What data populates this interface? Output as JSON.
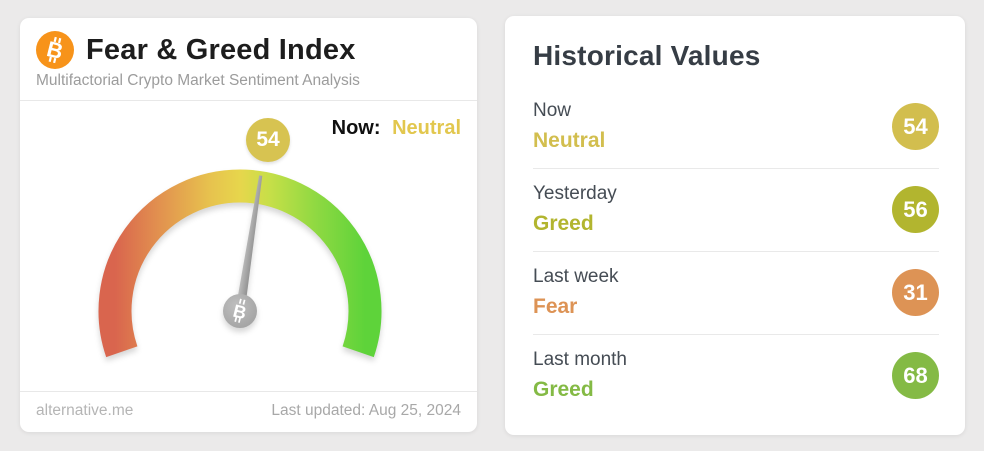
{
  "page_background": "#ebeaea",
  "gauge_card": {
    "title": "Fear & Greed Index",
    "subtitle": "Multifactorial Crypto Market Sentiment Analysis",
    "bitcoin_orange": "#f7931a",
    "now_label": "Now:",
    "now_classification": "Neutral",
    "now_classification_color": "#e2c74e",
    "gauge_badge_value": "54",
    "gauge_badge_color": "#d7c351",
    "footer_site": "alternative.me",
    "footer_updated": "Last updated: Aug 25, 2024"
  },
  "chart_data": {
    "type": "gauge",
    "title": "Fear & Greed Index",
    "value": 54,
    "min": 0,
    "max": 100,
    "classification": "Neutral",
    "scale_colors": [
      "#d9654e",
      "#e2924f",
      "#e7c24e",
      "#e7d64c",
      "#c6df48",
      "#90d942",
      "#5ed33a"
    ],
    "needle_color": "#9d9d9d",
    "pivot_color": "#a9a9a9"
  },
  "historical": {
    "title": "Historical Values",
    "rows": [
      {
        "label": "Now",
        "classification": "Neutral",
        "value": "54",
        "color": "#d2be4e"
      },
      {
        "label": "Yesterday",
        "classification": "Greed",
        "value": "56",
        "color": "#b2b52f"
      },
      {
        "label": "Last week",
        "classification": "Fear",
        "value": "31",
        "color": "#dd9355"
      },
      {
        "label": "Last month",
        "classification": "Greed",
        "value": "68",
        "color": "#84ba45"
      }
    ]
  }
}
